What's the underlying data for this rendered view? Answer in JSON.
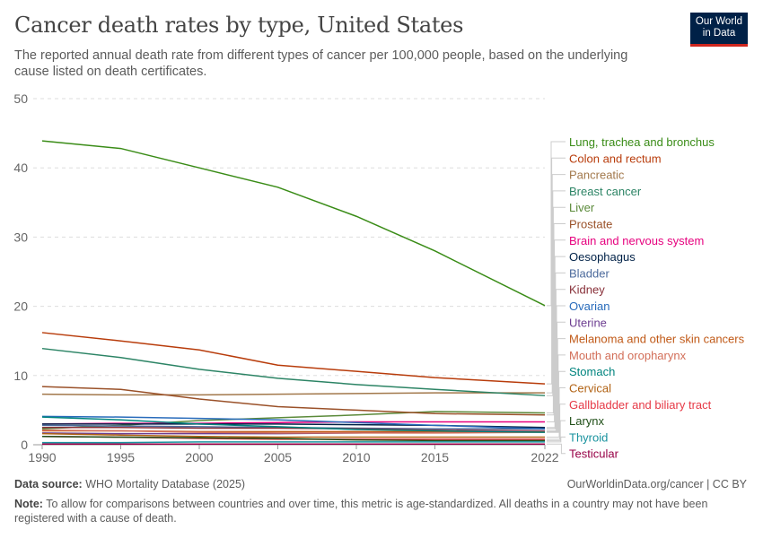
{
  "title": "Cancer death rates by type, United States",
  "subtitle": "The reported annual death rate from different types of cancer per 100,000 people, based on the underlying cause listed on death certificates.",
  "logo": "Our World in Data",
  "footer": {
    "source_label": "Data source:",
    "source": "WHO Mortality Database (2025)",
    "url": "OurWorldinData.org/cancer | CC BY",
    "note_label": "Note:",
    "note": "To allow for comparisons between countries and over time, this metric is age-standardized. All deaths in a country may not have been registered with a cause of death."
  },
  "chart_data": {
    "type": "line",
    "title": "Cancer death rates by type, United States",
    "xlabel": "",
    "ylabel": "",
    "xlim": [
      1990,
      2022
    ],
    "ylim": [
      0,
      50
    ],
    "grid": "horizontal dashed",
    "legend": "right",
    "xticks": [
      "1990",
      "1995",
      "2000",
      "2005",
      "2010",
      "2015",
      "2022"
    ],
    "yticks": [
      "0",
      "10",
      "20",
      "30",
      "40",
      "50"
    ],
    "x": [
      1990,
      1995,
      2000,
      2005,
      2010,
      2015,
      2022
    ],
    "series": [
      {
        "name": "Lung, trachea and bronchus",
        "color": "#3a8c17",
        "values": [
          43.9,
          42.8,
          40.0,
          37.2,
          33.0,
          28.0,
          20.1
        ]
      },
      {
        "name": "Colon and rectum",
        "color": "#b83c0b",
        "values": [
          16.2,
          15.0,
          13.7,
          11.5,
          10.6,
          9.7,
          8.8
        ]
      },
      {
        "name": "Pancreatic",
        "color": "#a2784b",
        "values": [
          7.3,
          7.2,
          7.2,
          7.3,
          7.4,
          7.5,
          7.5
        ]
      },
      {
        "name": "Breast cancer",
        "color": "#2c8465",
        "values": [
          13.9,
          12.6,
          10.9,
          9.6,
          8.7,
          8.0,
          7.1
        ]
      },
      {
        "name": "Liver",
        "color": "#5b8a3a",
        "values": [
          2.3,
          2.8,
          3.5,
          3.9,
          4.3,
          4.8,
          4.6
        ]
      },
      {
        "name": "Prostate",
        "color": "#9a5129",
        "values": [
          8.4,
          8.0,
          6.6,
          5.5,
          5.0,
          4.5,
          4.3
        ]
      },
      {
        "name": "Brain and nervous system",
        "color": "#e6007e",
        "values": [
          3.0,
          3.1,
          3.1,
          3.2,
          3.3,
          3.3,
          3.3
        ]
      },
      {
        "name": "Oesophagus",
        "color": "#002147",
        "values": [
          3.0,
          3.0,
          3.0,
          3.0,
          2.9,
          2.8,
          2.5
        ]
      },
      {
        "name": "Bladder",
        "color": "#4c6a9c",
        "values": [
          2.8,
          2.7,
          2.6,
          2.5,
          2.4,
          2.3,
          2.3
        ]
      },
      {
        "name": "Kidney",
        "color": "#883039",
        "values": [
          2.5,
          2.5,
          2.4,
          2.4,
          2.3,
          2.1,
          2.0
        ]
      },
      {
        "name": "Ovarian",
        "color": "#286bbb",
        "values": [
          4.1,
          4.0,
          3.8,
          3.6,
          3.2,
          2.8,
          2.3
        ]
      },
      {
        "name": "Uterine",
        "color": "#6d3e91",
        "values": [
          1.7,
          1.6,
          1.6,
          1.6,
          1.7,
          1.9,
          2.0
        ]
      },
      {
        "name": "Melanoma and other skin cancers",
        "color": "#c05917",
        "values": [
          2.0,
          2.0,
          1.9,
          1.9,
          1.9,
          1.9,
          1.9
        ]
      },
      {
        "name": "Mouth and oropharynx",
        "color": "#d26e58",
        "values": [
          2.1,
          2.0,
          1.8,
          1.7,
          1.7,
          1.7,
          1.8
        ]
      },
      {
        "name": "Stomach",
        "color": "#00847e",
        "values": [
          4.0,
          3.6,
          3.0,
          2.6,
          2.2,
          2.0,
          1.8
        ]
      },
      {
        "name": "Cervical",
        "color": "#b16214",
        "values": [
          1.6,
          1.4,
          1.2,
          1.1,
          1.1,
          1.1,
          1.1
        ]
      },
      {
        "name": "Gallbladder and biliary tract",
        "color": "#e63946",
        "values": [
          1.2,
          1.1,
          0.9,
          0.8,
          0.8,
          0.8,
          0.8
        ]
      },
      {
        "name": "Larynx",
        "color": "#1f4e17",
        "values": [
          1.2,
          1.1,
          1.0,
          0.9,
          0.7,
          0.6,
          0.6
        ]
      },
      {
        "name": "Thyroid",
        "color": "#18929e",
        "values": [
          0.3,
          0.3,
          0.4,
          0.4,
          0.4,
          0.4,
          0.4
        ]
      },
      {
        "name": "Testicular",
        "color": "#970046",
        "values": [
          0.1,
          0.1,
          0.1,
          0.1,
          0.1,
          0.1,
          0.1
        ]
      }
    ]
  }
}
